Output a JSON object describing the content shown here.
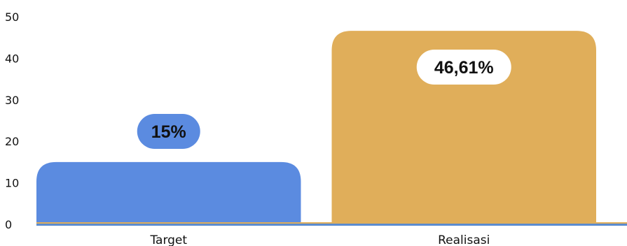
{
  "chart_data": {
    "type": "bar",
    "categories": [
      "Target",
      "Realisasi"
    ],
    "values": [
      15,
      46.61
    ],
    "data_labels": [
      "15%",
      "46,61%"
    ],
    "y_ticks": [
      "0",
      "10",
      "20",
      "30",
      "40",
      "50"
    ],
    "ylim": [
      0,
      50
    ],
    "title": "",
    "xlabel": "",
    "ylabel": "",
    "grid": false,
    "legend": "none",
    "bar_colors": [
      "#5b8be0",
      "#e0ae5a"
    ],
    "label_bg_colors": [
      "#5b8be0",
      "#ffffff"
    ],
    "label_text_colors": [
      "#111111",
      "#111111"
    ],
    "baseline_colors": [
      "#e0ae5a",
      "#5b8ccf"
    ]
  }
}
